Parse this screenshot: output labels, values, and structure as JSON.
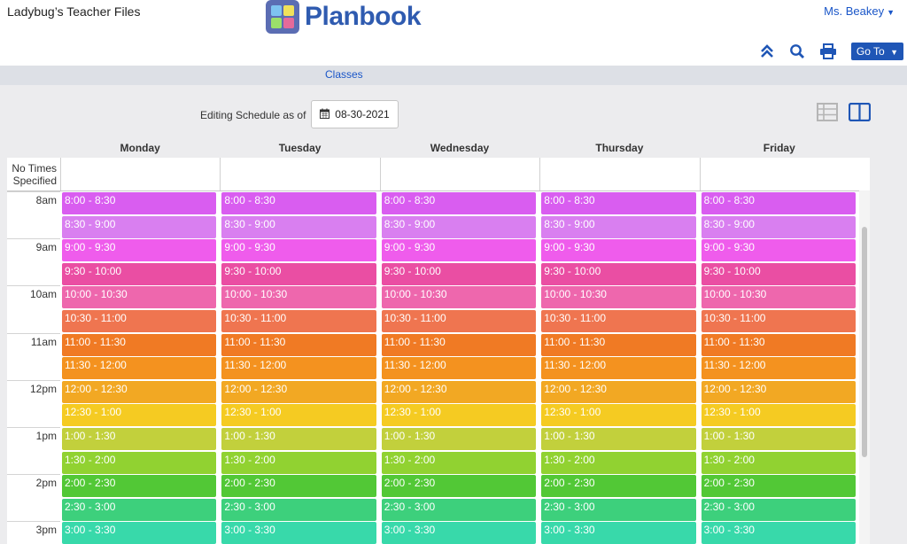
{
  "header": {
    "org_name": "Ladybug’s Teacher Files",
    "logo_text": "Planbook",
    "user_name": "Ms. Beakey",
    "goto_label": "Go To"
  },
  "nav": {
    "classes_label": "Classes"
  },
  "schedule": {
    "editing_label": "Editing Schedule as of",
    "date": "08-30-2021"
  },
  "days": [
    "Monday",
    "Tuesday",
    "Wednesday",
    "Thursday",
    "Friday"
  ],
  "no_times_label": [
    "No Times",
    "Specified"
  ],
  "hour_labels": [
    "8am",
    "9am",
    "10am",
    "11am",
    "12pm",
    "1pm",
    "2pm",
    "3pm"
  ],
  "slots": [
    {
      "label": "8:00 - 8:30",
      "color": "#d95df0"
    },
    {
      "label": "8:30 - 9:00",
      "color": "#d97ff0"
    },
    {
      "label": "9:00 - 9:30",
      "color": "#ef5cec"
    },
    {
      "label": "9:30 - 10:00",
      "color": "#ea4ea3"
    },
    {
      "label": "10:00 - 10:30",
      "color": "#ee67ad"
    },
    {
      "label": "10:30 - 11:00",
      "color": "#ef7550"
    },
    {
      "label": "11:00 - 11:30",
      "color": "#f07a24"
    },
    {
      "label": "11:30 - 12:00",
      "color": "#f4921f"
    },
    {
      "label": "12:00 - 12:30",
      "color": "#f2a823"
    },
    {
      "label": "12:30 - 1:00",
      "color": "#f5cb22"
    },
    {
      "label": "1:00 - 1:30",
      "color": "#c2d03c"
    },
    {
      "label": "1:30 - 2:00",
      "color": "#91d231"
    },
    {
      "label": "2:00 - 2:30",
      "color": "#52c836"
    },
    {
      "label": "2:30 - 3:00",
      "color": "#3dd07c"
    },
    {
      "label": "3:00 - 3:30",
      "color": "#38d9aa"
    }
  ],
  "colors": {
    "accent": "#1f56b6",
    "link": "#1a56c8"
  },
  "icons": {
    "collapse": "double-chevron-up-icon",
    "search": "search-icon",
    "print": "printer-icon",
    "calendar": "calendar-icon",
    "list_view": "list-view-icon",
    "column_view": "column-view-icon"
  }
}
